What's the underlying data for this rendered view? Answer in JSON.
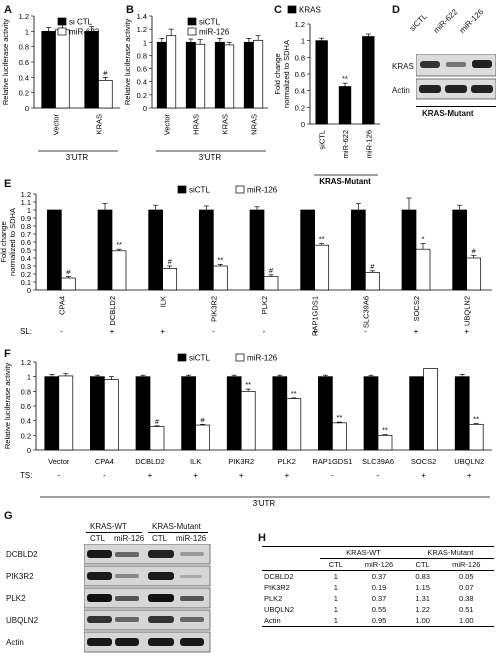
{
  "panels": {
    "A": "A",
    "B": "B",
    "C": "C",
    "D": "D",
    "E": "E",
    "F": "F",
    "G": "G",
    "H": "H"
  },
  "chart_data": [
    {
      "id": "A",
      "type": "bar",
      "ylabel": "Relative luciferase activity",
      "xlabel": "3'UTR",
      "categories": [
        "Vector",
        "KRAS"
      ],
      "ylim": [
        0,
        1.2
      ],
      "yticks": [
        0,
        0.2,
        0.4,
        0.6,
        0.8,
        1,
        1.2
      ],
      "series": [
        {
          "name": "si CTL",
          "values": [
            1.0,
            1.0
          ],
          "errors": [
            0.05,
            0.06
          ]
        },
        {
          "name": "miR-622",
          "values": [
            1.02,
            0.36
          ],
          "errors": [
            0.1,
            0.04
          ]
        }
      ],
      "annotations": [
        {
          "category": "KRAS",
          "series": 1,
          "text": "#"
        }
      ]
    },
    {
      "id": "B",
      "type": "bar",
      "ylabel": "Relative luciferase activity",
      "xlabel": "3'UTR",
      "categories": [
        "Vector",
        "HRAS",
        "KRAS",
        "NRAS"
      ],
      "ylim": [
        0,
        1.4
      ],
      "yticks": [
        0,
        0.2,
        0.4,
        0.6,
        0.8,
        1,
        1.2,
        1.4
      ],
      "series": [
        {
          "name": "siCTL",
          "values": [
            1.0,
            1.0,
            1.0,
            1.0
          ],
          "errors": [
            0.06,
            0.05,
            0.06,
            0.06
          ]
        },
        {
          "name": "miR-126",
          "values": [
            1.1,
            0.97,
            0.96,
            1.03
          ],
          "errors": [
            0.1,
            0.07,
            0.04,
            0.07
          ]
        }
      ]
    },
    {
      "id": "C",
      "type": "bar",
      "ylabel": "Fold change normalized to SDHA",
      "xlabel": "KRAS-Mutant",
      "categories": [
        "siCTL",
        "miR-622",
        "miR-126"
      ],
      "ylim": [
        0,
        1.2
      ],
      "yticks": [
        0,
        0.2,
        0.4,
        0.6,
        0.8,
        1,
        1.2
      ],
      "series": [
        {
          "name": "KRAS",
          "values": [
            1.0,
            0.45,
            1.05
          ],
          "errors": [
            0.03,
            0.04,
            0.03
          ]
        }
      ],
      "annotations": [
        {
          "category": "miR-622",
          "series": 0,
          "text": "**"
        }
      ]
    },
    {
      "id": "E",
      "type": "bar",
      "ylabel": "Fold change normalized to SDHA",
      "categories": [
        "CPA4",
        "DCBLD2",
        "ILK",
        "PIK3R2",
        "PLK2",
        "RAP1GDS1",
        "SLC39A6",
        "SOCS2",
        "UBQLN2"
      ],
      "ylim": [
        0,
        1.2
      ],
      "yticks": [
        0,
        0.1,
        0.2,
        0.3,
        0.4,
        0.5,
        0.6,
        0.7,
        0.8,
        0.9,
        1,
        1.1,
        1.2
      ],
      "series": [
        {
          "name": "siCTL",
          "values": [
            1.0,
            1.0,
            1.0,
            1.0,
            1.0,
            1.0,
            1.0,
            1.0,
            1.0
          ],
          "errors": [
            0.0,
            0.08,
            0.06,
            0.05,
            0.04,
            0.0,
            0.08,
            0.15,
            0.06
          ]
        },
        {
          "name": "miR-126",
          "values": [
            0.15,
            0.49,
            0.27,
            0.3,
            0.17,
            0.56,
            0.22,
            0.51,
            0.4
          ],
          "errors": [
            0.02,
            0.02,
            0.03,
            0.02,
            0.02,
            0.02,
            0.02,
            0.07,
            0.03
          ]
        }
      ],
      "marks": [
        "#",
        "**",
        "#",
        "**",
        "#",
        "**",
        "#",
        "*",
        "#"
      ],
      "row_label": "SL:",
      "row_marks": [
        "-",
        "+",
        "+",
        "-",
        "-",
        "+",
        "-",
        "+",
        "+"
      ]
    },
    {
      "id": "F",
      "type": "bar",
      "ylabel": "Relative luciferase activity",
      "xlabel": "3'UTR",
      "categories": [
        "Vector",
        "CPA4",
        "DCBLD2",
        "ILK",
        "PIK3R2",
        "PLK2",
        "RAP1GDS1",
        "SLC39A6",
        "SOCS2",
        "UBQLN2"
      ],
      "ylim": [
        0,
        1.2
      ],
      "yticks": [
        0,
        0.2,
        0.4,
        0.6,
        0.8,
        1,
        1.2
      ],
      "series": [
        {
          "name": "siCTL",
          "values": [
            1.0,
            1.0,
            1.0,
            1.0,
            1.0,
            1.0,
            1.0,
            1.0,
            1.0,
            1.0
          ],
          "errors": [
            0.03,
            0.02,
            0.02,
            0.02,
            0.02,
            0.02,
            0.02,
            0.02,
            0.0,
            0.03
          ]
        },
        {
          "name": "miR-126",
          "values": [
            1.01,
            0.96,
            0.32,
            0.34,
            0.8,
            0.7,
            0.37,
            0.2,
            1.11,
            0.35
          ],
          "errors": [
            0.03,
            0.04,
            0.01,
            0.01,
            0.03,
            0.01,
            0.01,
            0.01,
            0.0,
            0.01
          ]
        }
      ],
      "marks": [
        "",
        "",
        "#",
        "#",
        "**",
        "**",
        "**",
        "**",
        "",
        "**"
      ],
      "row_label": "TS:",
      "row_marks": [
        "-",
        "-",
        "+",
        "+",
        "+",
        "+",
        "-",
        "-",
        "+",
        "+"
      ]
    }
  ],
  "panelD": {
    "lanes": [
      "siCTL",
      "miR-622",
      "miR-126"
    ],
    "rows": [
      "KRAS",
      "Actin"
    ],
    "caption": "KRAS-Mutant"
  },
  "panelG": {
    "groups": [
      "KRAS-WT",
      "KRAS-Mutant"
    ],
    "lanes": [
      "CTL",
      "miR-126",
      "CTL",
      "miR-126"
    ],
    "rows": [
      "DCBLD2",
      "PIK3R2",
      "PLK2",
      "UBQLN2",
      "Actin"
    ]
  },
  "panelH": {
    "groups": [
      "KRAS-WT",
      "KRAS-Mutant"
    ],
    "columns": [
      "CTL",
      "miR-126",
      "CTL",
      "miR-126"
    ],
    "rows": [
      {
        "label": "DCBLD2",
        "values": [
          "1",
          "0.37",
          "0.83",
          "0.05"
        ]
      },
      {
        "label": "PIK3R2",
        "values": [
          "1",
          "0.19",
          "1.15",
          "0.07"
        ]
      },
      {
        "label": "PLK2",
        "values": [
          "1",
          "0.37",
          "1.31",
          "0.38"
        ]
      },
      {
        "label": "UBQLN2",
        "values": [
          "1",
          "0.55",
          "1.22",
          "0.51"
        ]
      },
      {
        "label": "Actin",
        "values": [
          "1",
          "0.95",
          "1.00",
          "1.00"
        ]
      }
    ]
  },
  "colors": {
    "filled": "#000000",
    "open": "#ffffff"
  }
}
